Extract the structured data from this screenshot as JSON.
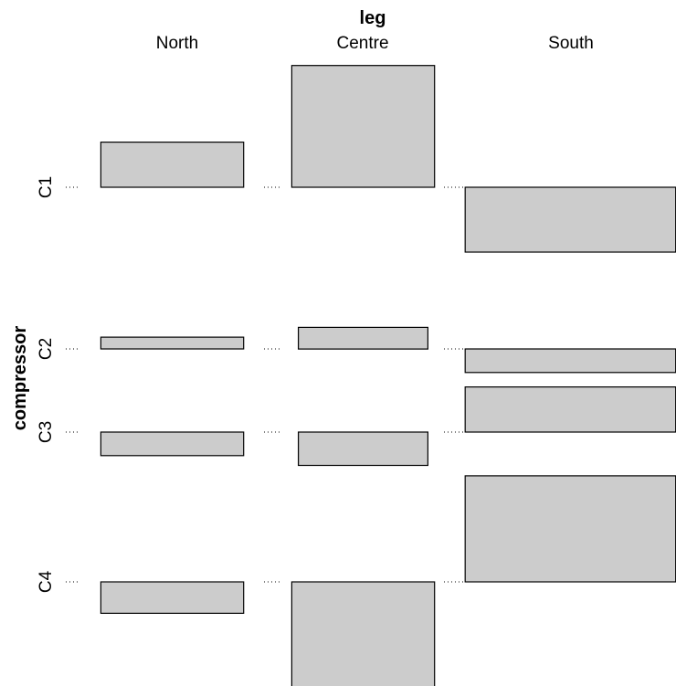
{
  "chart_data": {
    "type": "association",
    "title": "",
    "xlabel": "leg",
    "ylabel": "compressor",
    "columns": [
      "North",
      "Centre",
      "South"
    ],
    "rows": [
      "C1",
      "C2",
      "C3",
      "C4"
    ],
    "fill_color": "#cccccc",
    "residual_range": [
      -4.5,
      6.5
    ],
    "cells": [
      {
        "row": "C1",
        "col": "North",
        "residual": 2.3,
        "count": 51
      },
      {
        "row": "C1",
        "col": "Centre",
        "residual": 6.2,
        "count": 51
      },
      {
        "row": "C1",
        "col": "South",
        "residual": -3.3,
        "count": 111
      },
      {
        "row": "C2",
        "col": "North",
        "residual": 0.6,
        "count": 51
      },
      {
        "row": "C2",
        "col": "Centre",
        "residual": 1.1,
        "count": 42
      },
      {
        "row": "C2",
        "col": "South",
        "residual": -1.2,
        "count": 111
      },
      {
        "row": "C3",
        "col": "North",
        "residual": -1.2,
        "count": 51
      },
      {
        "row": "C3",
        "col": "Centre",
        "residual": -1.7,
        "count": 42
      },
      {
        "row": "C3",
        "col": "South",
        "residual": 2.3,
        "count": 111
      },
      {
        "row": "C4",
        "col": "North",
        "residual": -1.6,
        "count": 51
      },
      {
        "row": "C4",
        "col": "Centre",
        "residual": -5.4,
        "count": 51
      },
      {
        "row": "C4",
        "col": "South",
        "residual": 5.4,
        "count": 111
      }
    ]
  }
}
